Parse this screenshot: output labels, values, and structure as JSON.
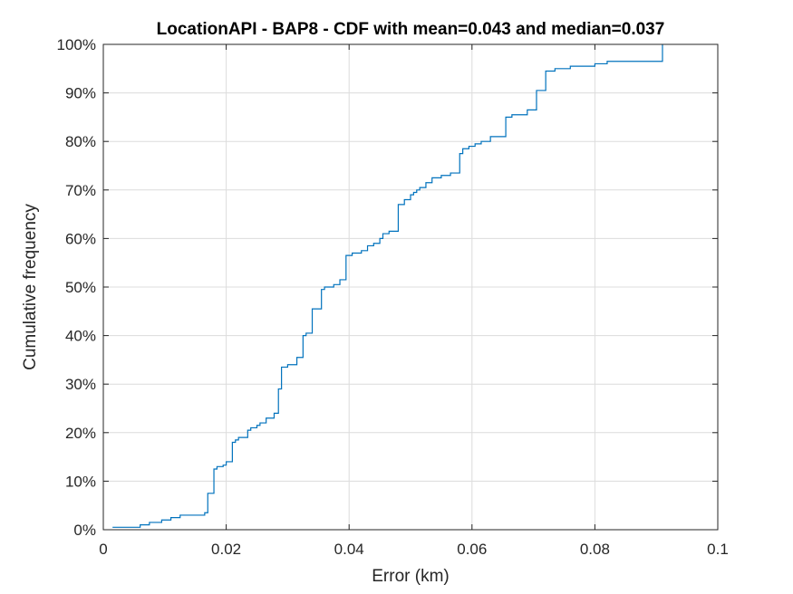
{
  "chart_data": {
    "type": "line",
    "title": "LocationAPI - BAP8 - CDF with mean=0.043 and median=0.037",
    "xlabel": "Error (km)",
    "ylabel": "Cumulative frequency",
    "xlim": [
      0,
      0.1
    ],
    "ylim": [
      0,
      100
    ],
    "x_ticks": [
      0,
      0.02,
      0.04,
      0.06,
      0.08,
      0.1
    ],
    "x_tick_labels": [
      "0",
      "0.02",
      "0.04",
      "0.06",
      "0.08",
      "0.1"
    ],
    "y_ticks": [
      0,
      10,
      20,
      30,
      40,
      50,
      60,
      70,
      80,
      90,
      100
    ],
    "y_tick_labels": [
      "0%",
      "10%",
      "20%",
      "30%",
      "40%",
      "50%",
      "60%",
      "70%",
      "80%",
      "90%",
      "100%"
    ],
    "grid": true,
    "line_color": "#0072bd",
    "series": [
      {
        "step": true,
        "x": [
          0.0015,
          0.006,
          0.0075,
          0.0095,
          0.011,
          0.0125,
          0.0165,
          0.017,
          0.018,
          0.0185,
          0.0188,
          0.0195,
          0.02,
          0.021,
          0.0215,
          0.022,
          0.0235,
          0.024,
          0.025,
          0.0255,
          0.0265,
          0.0278,
          0.0285,
          0.029,
          0.03,
          0.0315,
          0.0325,
          0.033,
          0.034,
          0.0345,
          0.0355,
          0.036,
          0.0375,
          0.0385,
          0.0395,
          0.0405,
          0.042,
          0.043,
          0.044,
          0.045,
          0.0455,
          0.0465,
          0.048,
          0.049,
          0.05,
          0.0505,
          0.051,
          0.0515,
          0.0525,
          0.0535,
          0.055,
          0.0565,
          0.058,
          0.0585,
          0.0595,
          0.0605,
          0.0615,
          0.063,
          0.0655,
          0.0665,
          0.069,
          0.0705,
          0.072,
          0.0735,
          0.076,
          0.08,
          0.082,
          0.091
        ],
        "y": [
          0.5,
          1.0,
          1.5,
          2.0,
          2.5,
          3.0,
          3.5,
          7.5,
          12.5,
          13.0,
          13.0,
          13.3,
          14.0,
          18.0,
          18.5,
          19.0,
          20.5,
          21.0,
          21.5,
          22.0,
          23.0,
          24.0,
          29.0,
          33.5,
          34.0,
          35.5,
          40.0,
          40.5,
          45.5,
          45.5,
          49.5,
          50.0,
          50.5,
          51.5,
          56.5,
          57.0,
          57.5,
          58.5,
          59.0,
          60.0,
          61.0,
          61.5,
          67.0,
          68.0,
          69.0,
          69.5,
          70.0,
          70.5,
          71.5,
          72.5,
          73.0,
          73.5,
          77.5,
          78.5,
          79.0,
          79.5,
          80.0,
          81.0,
          85.0,
          85.5,
          86.5,
          90.5,
          94.5,
          95.0,
          95.5,
          96.0,
          96.5,
          100.0
        ]
      }
    ]
  }
}
